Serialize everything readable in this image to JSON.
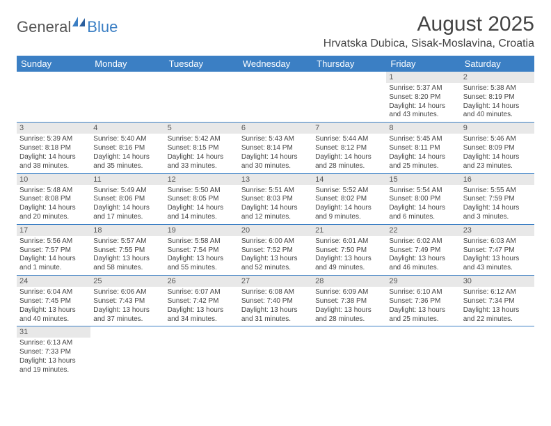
{
  "logo": {
    "part1": "General",
    "part2": "Blue"
  },
  "title": "August 2025",
  "location": "Hrvatska Dubica, Sisak-Moslavina, Croatia",
  "weekdays": [
    "Sunday",
    "Monday",
    "Tuesday",
    "Wednesday",
    "Thursday",
    "Friday",
    "Saturday"
  ],
  "colors": {
    "header_bg": "#3b7fc4",
    "header_fg": "#ffffff",
    "border": "#3b7fc4",
    "daynum_bg": "#e8e8e8"
  },
  "weeks": [
    [
      null,
      null,
      null,
      null,
      null,
      {
        "n": "1",
        "sr": "Sunrise: 5:37 AM",
        "ss": "Sunset: 8:20 PM",
        "dl": "Daylight: 14 hours and 43 minutes."
      },
      {
        "n": "2",
        "sr": "Sunrise: 5:38 AM",
        "ss": "Sunset: 8:19 PM",
        "dl": "Daylight: 14 hours and 40 minutes."
      }
    ],
    [
      {
        "n": "3",
        "sr": "Sunrise: 5:39 AM",
        "ss": "Sunset: 8:18 PM",
        "dl": "Daylight: 14 hours and 38 minutes."
      },
      {
        "n": "4",
        "sr": "Sunrise: 5:40 AM",
        "ss": "Sunset: 8:16 PM",
        "dl": "Daylight: 14 hours and 35 minutes."
      },
      {
        "n": "5",
        "sr": "Sunrise: 5:42 AM",
        "ss": "Sunset: 8:15 PM",
        "dl": "Daylight: 14 hours and 33 minutes."
      },
      {
        "n": "6",
        "sr": "Sunrise: 5:43 AM",
        "ss": "Sunset: 8:14 PM",
        "dl": "Daylight: 14 hours and 30 minutes."
      },
      {
        "n": "7",
        "sr": "Sunrise: 5:44 AM",
        "ss": "Sunset: 8:12 PM",
        "dl": "Daylight: 14 hours and 28 minutes."
      },
      {
        "n": "8",
        "sr": "Sunrise: 5:45 AM",
        "ss": "Sunset: 8:11 PM",
        "dl": "Daylight: 14 hours and 25 minutes."
      },
      {
        "n": "9",
        "sr": "Sunrise: 5:46 AM",
        "ss": "Sunset: 8:09 PM",
        "dl": "Daylight: 14 hours and 23 minutes."
      }
    ],
    [
      {
        "n": "10",
        "sr": "Sunrise: 5:48 AM",
        "ss": "Sunset: 8:08 PM",
        "dl": "Daylight: 14 hours and 20 minutes."
      },
      {
        "n": "11",
        "sr": "Sunrise: 5:49 AM",
        "ss": "Sunset: 8:06 PM",
        "dl": "Daylight: 14 hours and 17 minutes."
      },
      {
        "n": "12",
        "sr": "Sunrise: 5:50 AM",
        "ss": "Sunset: 8:05 PM",
        "dl": "Daylight: 14 hours and 14 minutes."
      },
      {
        "n": "13",
        "sr": "Sunrise: 5:51 AM",
        "ss": "Sunset: 8:03 PM",
        "dl": "Daylight: 14 hours and 12 minutes."
      },
      {
        "n": "14",
        "sr": "Sunrise: 5:52 AM",
        "ss": "Sunset: 8:02 PM",
        "dl": "Daylight: 14 hours and 9 minutes."
      },
      {
        "n": "15",
        "sr": "Sunrise: 5:54 AM",
        "ss": "Sunset: 8:00 PM",
        "dl": "Daylight: 14 hours and 6 minutes."
      },
      {
        "n": "16",
        "sr": "Sunrise: 5:55 AM",
        "ss": "Sunset: 7:59 PM",
        "dl": "Daylight: 14 hours and 3 minutes."
      }
    ],
    [
      {
        "n": "17",
        "sr": "Sunrise: 5:56 AM",
        "ss": "Sunset: 7:57 PM",
        "dl": "Daylight: 14 hours and 1 minute."
      },
      {
        "n": "18",
        "sr": "Sunrise: 5:57 AM",
        "ss": "Sunset: 7:55 PM",
        "dl": "Daylight: 13 hours and 58 minutes."
      },
      {
        "n": "19",
        "sr": "Sunrise: 5:58 AM",
        "ss": "Sunset: 7:54 PM",
        "dl": "Daylight: 13 hours and 55 minutes."
      },
      {
        "n": "20",
        "sr": "Sunrise: 6:00 AM",
        "ss": "Sunset: 7:52 PM",
        "dl": "Daylight: 13 hours and 52 minutes."
      },
      {
        "n": "21",
        "sr": "Sunrise: 6:01 AM",
        "ss": "Sunset: 7:50 PM",
        "dl": "Daylight: 13 hours and 49 minutes."
      },
      {
        "n": "22",
        "sr": "Sunrise: 6:02 AM",
        "ss": "Sunset: 7:49 PM",
        "dl": "Daylight: 13 hours and 46 minutes."
      },
      {
        "n": "23",
        "sr": "Sunrise: 6:03 AM",
        "ss": "Sunset: 7:47 PM",
        "dl": "Daylight: 13 hours and 43 minutes."
      }
    ],
    [
      {
        "n": "24",
        "sr": "Sunrise: 6:04 AM",
        "ss": "Sunset: 7:45 PM",
        "dl": "Daylight: 13 hours and 40 minutes."
      },
      {
        "n": "25",
        "sr": "Sunrise: 6:06 AM",
        "ss": "Sunset: 7:43 PM",
        "dl": "Daylight: 13 hours and 37 minutes."
      },
      {
        "n": "26",
        "sr": "Sunrise: 6:07 AM",
        "ss": "Sunset: 7:42 PM",
        "dl": "Daylight: 13 hours and 34 minutes."
      },
      {
        "n": "27",
        "sr": "Sunrise: 6:08 AM",
        "ss": "Sunset: 7:40 PM",
        "dl": "Daylight: 13 hours and 31 minutes."
      },
      {
        "n": "28",
        "sr": "Sunrise: 6:09 AM",
        "ss": "Sunset: 7:38 PM",
        "dl": "Daylight: 13 hours and 28 minutes."
      },
      {
        "n": "29",
        "sr": "Sunrise: 6:10 AM",
        "ss": "Sunset: 7:36 PM",
        "dl": "Daylight: 13 hours and 25 minutes."
      },
      {
        "n": "30",
        "sr": "Sunrise: 6:12 AM",
        "ss": "Sunset: 7:34 PM",
        "dl": "Daylight: 13 hours and 22 minutes."
      }
    ],
    [
      {
        "n": "31",
        "sr": "Sunrise: 6:13 AM",
        "ss": "Sunset: 7:33 PM",
        "dl": "Daylight: 13 hours and 19 minutes."
      },
      null,
      null,
      null,
      null,
      null,
      null
    ]
  ]
}
